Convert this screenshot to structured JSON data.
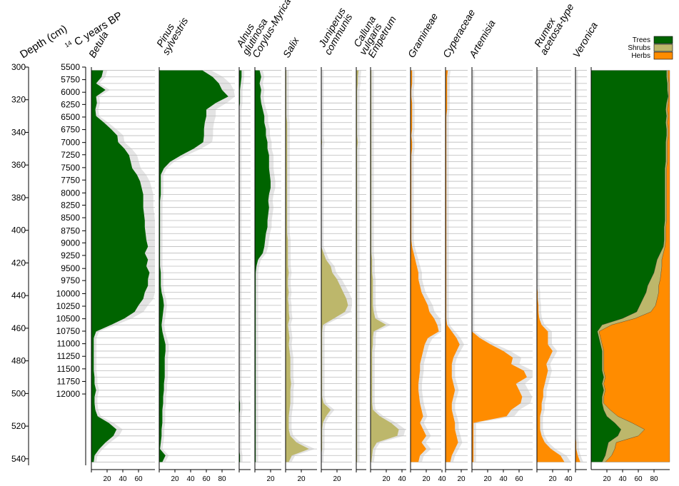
{
  "chart_data": {
    "type": "area",
    "depth_label": "Depth (cm)",
    "age_label_sup": "14",
    "age_label": "C years BP",
    "depth_ticks": [
      300,
      320,
      340,
      360,
      380,
      400,
      420,
      440,
      460,
      480,
      500,
      520,
      540
    ],
    "depth_range": [
      300,
      544
    ],
    "age_ticks": [
      {
        "label": "5500",
        "depth": 300
      },
      {
        "label": "5750",
        "depth": 307.7
      },
      {
        "label": "6000",
        "depth": 315.4
      },
      {
        "label": "6250",
        "depth": 322.9
      },
      {
        "label": "6500",
        "depth": 330.6
      },
      {
        "label": "6750",
        "depth": 338.3
      },
      {
        "label": "7000",
        "depth": 346.2
      },
      {
        "label": "7250",
        "depth": 353.7
      },
      {
        "label": "7500",
        "depth": 361.6
      },
      {
        "label": "7750",
        "depth": 369.2
      },
      {
        "label": "8000",
        "depth": 377.1
      },
      {
        "label": "8250",
        "depth": 384.6
      },
      {
        "label": "8500",
        "depth": 392.3
      },
      {
        "label": "8750",
        "depth": 400.3
      },
      {
        "label": "9000",
        "depth": 407.7
      },
      {
        "label": "9250",
        "depth": 415.4
      },
      {
        "label": "9500",
        "depth": 423.4
      },
      {
        "label": "9750",
        "depth": 430.8
      },
      {
        "label": "10000",
        "depth": 438.8
      },
      {
        "label": "10250",
        "depth": 446.5
      },
      {
        "label": "10500",
        "depth": 454.2
      },
      {
        "label": "10750",
        "depth": 461.8
      },
      {
        "label": "11000",
        "depth": 469.5
      },
      {
        "label": "11250",
        "depth": 477.2
      },
      {
        "label": "11500",
        "depth": 484.9
      },
      {
        "label": "11750",
        "depth": 492.6
      },
      {
        "label": "12000",
        "depth": 500.3
      }
    ],
    "sample_depths": [
      302,
      306,
      310,
      314,
      318,
      322,
      326,
      330,
      334,
      338,
      342,
      346,
      350,
      354,
      358,
      362,
      366,
      370,
      374,
      378,
      382,
      386,
      390,
      394,
      398,
      402,
      406,
      410,
      414,
      418,
      422,
      426,
      430,
      434,
      438,
      442,
      446,
      450,
      454,
      458,
      462,
      466,
      470,
      474,
      478,
      482,
      486,
      490,
      494,
      498,
      502,
      506,
      510,
      514,
      518,
      522,
      526,
      530,
      534,
      538,
      542
    ],
    "taxa": [
      {
        "name": "Betula",
        "group": "Trees",
        "axis_ticks": [
          20,
          40,
          60
        ],
        "values": [
          15,
          13,
          6,
          18,
          6,
          7,
          5,
          6,
          16,
          25,
          33,
          34,
          42,
          48,
          50,
          52,
          58,
          62,
          64,
          66,
          66,
          66,
          67,
          68,
          68,
          69,
          70,
          72,
          68,
          72,
          70,
          74,
          72,
          72,
          68,
          66,
          60,
          55,
          42,
          25,
          6,
          3,
          3,
          3,
          3,
          3,
          3,
          4,
          4,
          6,
          4,
          4,
          5,
          8,
          22,
          32,
          28,
          18,
          10,
          4,
          3
        ]
      },
      {
        "name": "Pinus sylvestris",
        "group": "Trees",
        "axis_ticks": [
          20,
          40,
          60,
          80
        ],
        "values": [
          55,
          68,
          76,
          80,
          88,
          72,
          60,
          60,
          58,
          57,
          57,
          56,
          44,
          28,
          14,
          6,
          2,
          2,
          2,
          2,
          1,
          1,
          1,
          1,
          1,
          1,
          1,
          1,
          1,
          1,
          1,
          2,
          2,
          2,
          3,
          5,
          6,
          5,
          4,
          3,
          4,
          6,
          8,
          8,
          7,
          7,
          7,
          7,
          6,
          6,
          5,
          5,
          4,
          4,
          4,
          3,
          3,
          2,
          1,
          8,
          4
        ]
      },
      {
        "name": "Alnus glutinosa",
        "group": "Trees",
        "axis_ticks": [],
        "values": [
          3,
          3,
          2,
          1,
          1,
          1,
          0,
          0,
          0,
          0,
          0,
          0,
          0,
          0,
          0,
          0,
          0,
          0,
          0,
          0,
          0,
          0,
          0,
          0,
          0,
          0,
          0,
          0,
          0,
          0,
          0,
          0,
          0,
          0,
          0,
          0,
          0,
          0,
          0,
          0,
          0,
          0,
          0,
          0,
          0,
          0,
          0,
          0,
          0,
          0,
          0,
          1,
          1,
          0,
          0,
          0,
          0,
          0,
          0,
          1,
          1
        ]
      },
      {
        "name": "Corylus-Myrica",
        "group": "Trees",
        "axis_ticks": [
          20
        ],
        "values": [
          6,
          8,
          6,
          8,
          7,
          8,
          10,
          12,
          12,
          14,
          14,
          16,
          16,
          18,
          18,
          18,
          19,
          20,
          20,
          18,
          17,
          18,
          17,
          16,
          16,
          14,
          13,
          12,
          10,
          4,
          2,
          1,
          1,
          1,
          1,
          1,
          1,
          1,
          1,
          1,
          1,
          1,
          1,
          1,
          1,
          1,
          1,
          1,
          1,
          1,
          1,
          1,
          1,
          1,
          1,
          1,
          1,
          1,
          1,
          1,
          1
        ]
      },
      {
        "name": "Salix",
        "group": "Shrubs",
        "axis_ticks": [
          20
        ],
        "values": [
          1,
          1,
          1,
          1,
          1,
          1,
          1,
          1,
          2,
          2,
          2,
          2,
          2,
          2,
          2,
          2,
          2,
          2,
          2,
          2,
          2,
          2,
          2,
          2,
          2,
          2,
          3,
          3,
          3,
          3,
          3,
          4,
          3,
          3,
          4,
          3,
          4,
          4,
          5,
          3,
          4,
          5,
          4,
          5,
          6,
          6,
          6,
          6,
          7,
          6,
          6,
          6,
          5,
          4,
          4,
          4,
          6,
          14,
          30,
          8,
          4
        ]
      },
      {
        "name": "Juniperus communis",
        "group": "Shrubs",
        "axis_ticks": [
          20
        ],
        "values": [
          0,
          0,
          0,
          0,
          0,
          0,
          0,
          0,
          0,
          0,
          0,
          1,
          0,
          0,
          0,
          0,
          0,
          0,
          0,
          0,
          0,
          0,
          0,
          0,
          0,
          0,
          0,
          0,
          3,
          6,
          12,
          14,
          20,
          24,
          28,
          32,
          34,
          30,
          16,
          2,
          1,
          1,
          1,
          1,
          1,
          1,
          1,
          1,
          1,
          1,
          1,
          3,
          12,
          6,
          2,
          1,
          1,
          1,
          1,
          0,
          0
        ]
      },
      {
        "name": "Calluna vulgaris",
        "group": "Shrubs",
        "axis_ticks": [],
        "values": [
          3,
          2,
          2,
          1,
          1,
          1,
          1,
          1,
          1,
          1,
          1,
          2,
          1,
          1,
          1,
          1,
          1,
          1,
          1,
          1,
          1,
          1,
          1,
          1,
          1,
          1,
          1,
          1,
          1,
          1,
          1,
          1,
          1,
          1,
          1,
          1,
          1,
          1,
          1,
          1,
          1,
          1,
          1,
          1,
          1,
          1,
          1,
          1,
          1,
          1,
          1,
          1,
          1,
          1,
          1,
          1,
          1,
          1,
          1,
          1,
          1
        ]
      },
      {
        "name": "Empetrum",
        "group": "Shrubs",
        "axis_ticks": [
          20,
          40
        ],
        "values": [
          1,
          1,
          1,
          1,
          1,
          1,
          1,
          1,
          1,
          1,
          1,
          1,
          1,
          1,
          1,
          1,
          1,
          1,
          1,
          1,
          1,
          1,
          1,
          1,
          1,
          1,
          1,
          1,
          1,
          2,
          2,
          2,
          3,
          3,
          3,
          3,
          3,
          4,
          6,
          20,
          4,
          3,
          3,
          2,
          2,
          2,
          2,
          2,
          2,
          2,
          2,
          2,
          3,
          12,
          26,
          36,
          34,
          8,
          3,
          2,
          1
        ]
      },
      {
        "name": "Gramineae",
        "group": "Herbs",
        "axis_ticks": [
          20,
          40
        ],
        "values": [
          2,
          2,
          2,
          1,
          1,
          2,
          2,
          2,
          2,
          2,
          1,
          2,
          2,
          1,
          1,
          1,
          1,
          1,
          1,
          1,
          1,
          1,
          1,
          1,
          1,
          1,
          1,
          2,
          4,
          6,
          8,
          10,
          10,
          12,
          14,
          18,
          22,
          24,
          30,
          34,
          36,
          22,
          18,
          16,
          14,
          12,
          12,
          11,
          10,
          10,
          11,
          12,
          14,
          16,
          12,
          16,
          20,
          14,
          20,
          12,
          10
        ]
      },
      {
        "name": "Cyperaceae",
        "group": "Herbs",
        "axis_ticks": [
          20
        ],
        "values": [
          3,
          2,
          2,
          2,
          2,
          2,
          2,
          1,
          1,
          1,
          1,
          1,
          1,
          1,
          1,
          1,
          1,
          1,
          1,
          1,
          1,
          1,
          1,
          1,
          1,
          1,
          1,
          1,
          1,
          1,
          1,
          1,
          1,
          1,
          1,
          1,
          1,
          1,
          1,
          2,
          8,
          14,
          18,
          14,
          10,
          8,
          8,
          8,
          10,
          12,
          10,
          8,
          8,
          10,
          12,
          12,
          14,
          16,
          12,
          8,
          6
        ]
      },
      {
        "name": "Artemisia",
        "group": "Herbs",
        "axis_ticks": [
          20,
          40,
          60
        ],
        "values": [
          0,
          0,
          0,
          0,
          0,
          0,
          0,
          0,
          0,
          0,
          0,
          0,
          0,
          0,
          0,
          0,
          0,
          0,
          0,
          0,
          0,
          0,
          0,
          0,
          0,
          0,
          0,
          0,
          0,
          0,
          0,
          0,
          0,
          0,
          0,
          0,
          0,
          0,
          0,
          0,
          0,
          10,
          24,
          40,
          52,
          50,
          66,
          70,
          56,
          60,
          64,
          62,
          50,
          44,
          2,
          2,
          2,
          2,
          2,
          2,
          2
        ]
      },
      {
        "name": "Rumex acetosa-type",
        "group": "Herbs",
        "axis_ticks": [
          20,
          40
        ],
        "values": [
          0,
          0,
          0,
          0,
          0,
          0,
          0,
          0,
          0,
          0,
          0,
          0,
          0,
          0,
          0,
          0,
          0,
          0,
          0,
          0,
          0,
          0,
          0,
          0,
          0,
          0,
          0,
          0,
          0,
          0,
          0,
          0,
          0,
          0,
          1,
          1,
          2,
          2,
          3,
          6,
          14,
          14,
          14,
          20,
          16,
          12,
          14,
          12,
          10,
          8,
          8,
          6,
          6,
          4,
          4,
          4,
          6,
          10,
          18,
          30,
          35
        ]
      },
      {
        "name": "Veronica",
        "group": "Herbs",
        "axis_ticks": [],
        "values": [
          0,
          0,
          0,
          0,
          0,
          0,
          0,
          0,
          0,
          0,
          0,
          0,
          0,
          0,
          0,
          0,
          0,
          0,
          0,
          0,
          0,
          0,
          0,
          0,
          0,
          0,
          0,
          0,
          0,
          0,
          0,
          0,
          0,
          0,
          0,
          0,
          0,
          0,
          0,
          0,
          0,
          0,
          0,
          0,
          0,
          0,
          0,
          0,
          0,
          0,
          0,
          0,
          0,
          0,
          0,
          0,
          0,
          1,
          1,
          3,
          6
        ]
      }
    ],
    "summary": {
      "type": "stacked-area",
      "axis_ticks": [
        20,
        40,
        60,
        80
      ],
      "legend_placement": "top-right",
      "series": [
        {
          "name": "Trees",
          "color": "#006400",
          "values": [
            96,
            96,
            97,
            97,
            98,
            96,
            95,
            96,
            95,
            96,
            96,
            95,
            95,
            95,
            95,
            94,
            94,
            94,
            94,
            94,
            94,
            94,
            94,
            94,
            93,
            93,
            93,
            92,
            88,
            84,
            82,
            80,
            76,
            72,
            70,
            66,
            62,
            58,
            40,
            14,
            8,
            10,
            12,
            14,
            14,
            14,
            14,
            16,
            14,
            16,
            14,
            14,
            16,
            20,
            30,
            38,
            34,
            22,
            20,
            18,
            14
          ]
        },
        {
          "name": "Shrubs",
          "color": "#BDB76B",
          "values": [
            2,
            2,
            2,
            2,
            1,
            2,
            2,
            2,
            2,
            2,
            2,
            2,
            2,
            2,
            2,
            2,
            2,
            2,
            2,
            2,
            2,
            2,
            2,
            2,
            2,
            2,
            2,
            2,
            4,
            6,
            8,
            9,
            12,
            14,
            16,
            18,
            20,
            18,
            16,
            12,
            2,
            2,
            2,
            2,
            2,
            2,
            2,
            2,
            2,
            2,
            2,
            2,
            8,
            14,
            22,
            30,
            26,
            10,
            10,
            8,
            4
          ]
        },
        {
          "name": "Herbs",
          "color": "#FF8C00",
          "values": [
            2,
            2,
            1,
            1,
            1,
            2,
            3,
            2,
            3,
            2,
            2,
            3,
            3,
            3,
            3,
            4,
            4,
            4,
            4,
            4,
            4,
            4,
            4,
            4,
            5,
            5,
            5,
            6,
            8,
            10,
            10,
            11,
            12,
            14,
            14,
            16,
            18,
            24,
            44,
            74,
            90,
            88,
            86,
            84,
            84,
            84,
            84,
            82,
            84,
            82,
            84,
            84,
            76,
            66,
            48,
            32,
            40,
            68,
            70,
            74,
            82
          ]
        }
      ]
    },
    "colors": {
      "trees": "#006400",
      "shrubs": "#BDB76B",
      "herbs": "#FF8C00",
      "exaggeration": "#E4E4E4",
      "sample_line": "#BBBBBB"
    }
  }
}
